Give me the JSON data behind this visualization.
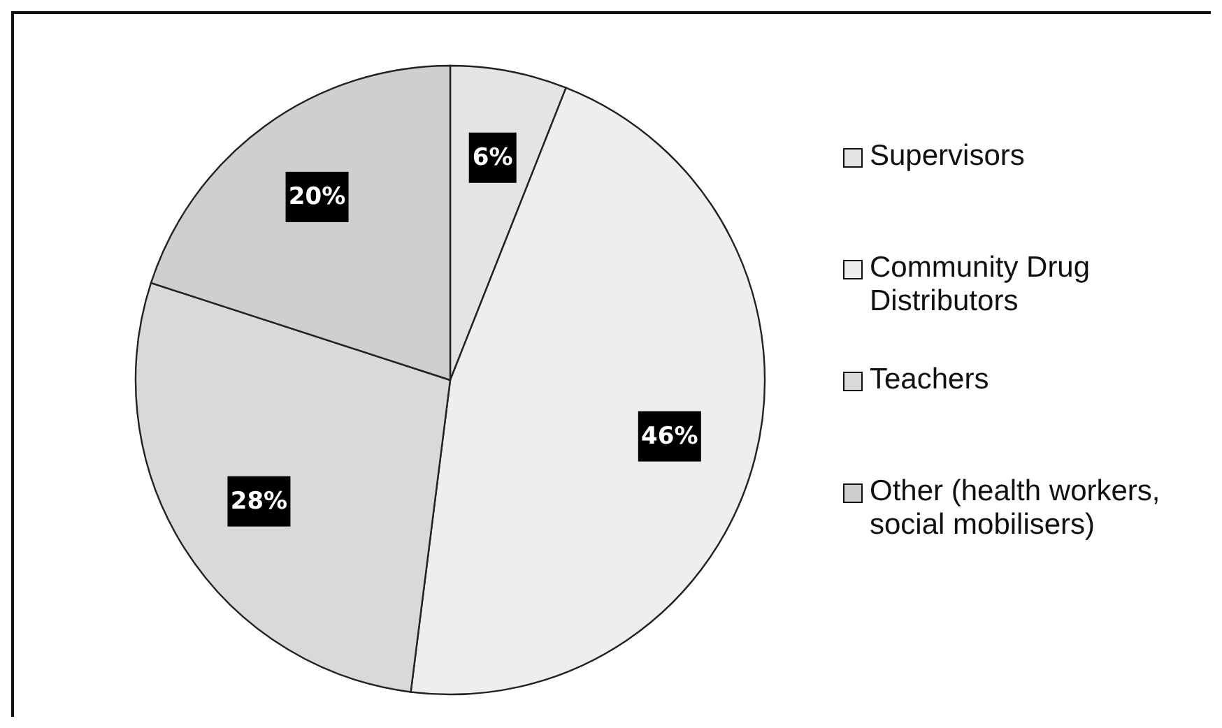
{
  "chart_data": {
    "type": "pie",
    "categories": [
      "Supervisors",
      "Community Drug Distributors",
      "Teachers",
      "Other (health workers, social mobilisers)"
    ],
    "values": [
      6,
      46,
      28,
      20
    ],
    "value_labels": [
      "6%",
      "46%",
      "28%",
      "20%"
    ],
    "colors": [
      "#e4e4e4",
      "#eeeeee",
      "#d9d9d9",
      "#cfcfcf"
    ],
    "legend": "right"
  }
}
